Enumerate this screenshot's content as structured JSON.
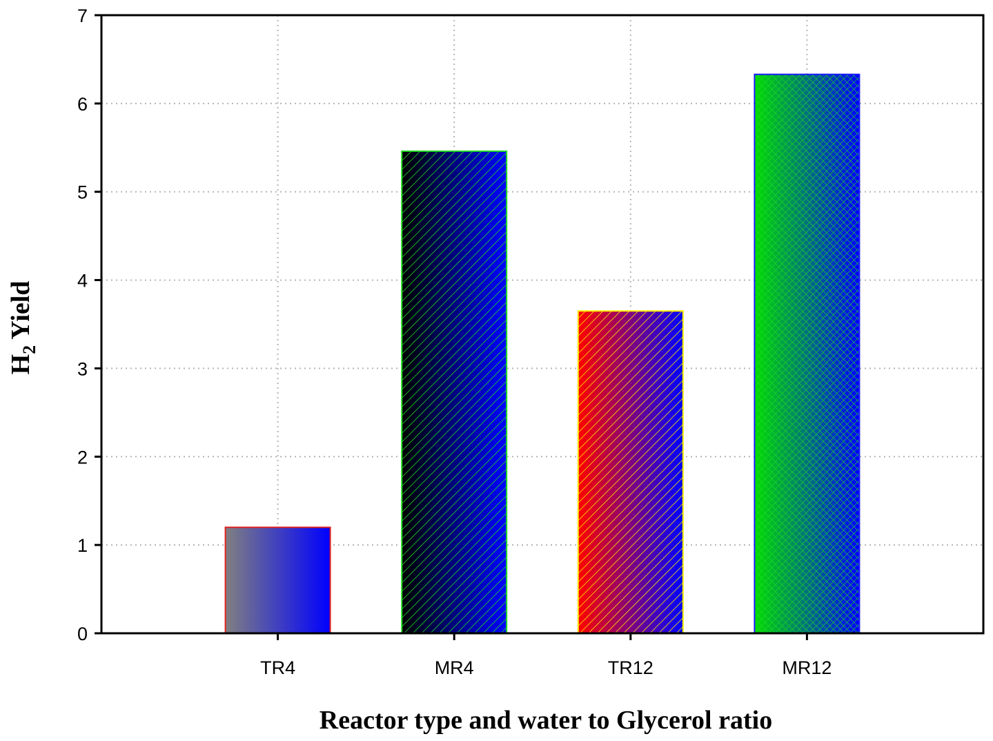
{
  "chart_data": {
    "type": "bar",
    "title": "",
    "xlabel": "Reactor type and water to Glycerol ratio",
    "ylabel": {
      "prefix": "H",
      "subscript": "2",
      "suffix": " Yield"
    },
    "categories": [
      "TR4",
      "MR4",
      "TR12",
      "MR12"
    ],
    "values": [
      1.2,
      5.46,
      3.65,
      6.33
    ],
    "ylim": [
      0,
      7
    ],
    "yticks": [
      0,
      1,
      2,
      3,
      4,
      5,
      6,
      7
    ],
    "grid": true,
    "bar_styles": [
      {
        "from": "#808080",
        "to": "#0000ff",
        "edge": "#e02020",
        "hatch": "none"
      },
      {
        "from": "#000000",
        "to": "#0000ff",
        "edge": "#22dd22",
        "hatch": "diag",
        "hatch_color": "#22dd22"
      },
      {
        "from": "#ff0000",
        "to": "#0000ff",
        "edge": "#ffee00",
        "hatch": "diag",
        "hatch_color": "#ffee00"
      },
      {
        "from": "#00dd00",
        "to": "#0000ff",
        "edge": "#1a1aff",
        "hatch": "cross",
        "hatch_color": "#22dd22"
      }
    ]
  }
}
